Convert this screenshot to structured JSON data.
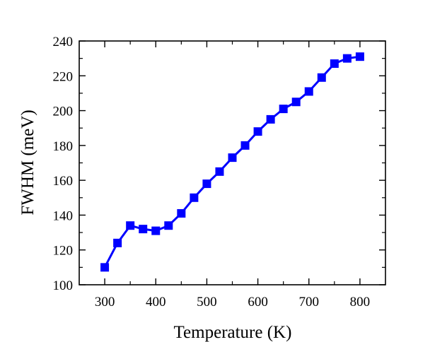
{
  "chart_data": {
    "type": "line",
    "title": "",
    "xlabel": "Temperature (K)",
    "ylabel": "FWHM (meV)",
    "xlim": [
      250,
      850
    ],
    "ylim": [
      100,
      240
    ],
    "xticks": [
      300,
      400,
      500,
      600,
      700,
      800
    ],
    "yticks": [
      100,
      120,
      140,
      160,
      180,
      200,
      220,
      240
    ],
    "grid": false,
    "legend": "none",
    "series": [
      {
        "marker": "square",
        "color": "#0000ff",
        "x": [
          300,
          325,
          350,
          375,
          400,
          425,
          450,
          475,
          500,
          525,
          550,
          575,
          600,
          625,
          650,
          675,
          700,
          725,
          750,
          775,
          800
        ],
        "y": [
          110,
          124,
          134,
          132,
          131,
          134,
          141,
          150,
          158,
          165,
          173,
          180,
          188,
          195,
          201,
          205,
          211,
          219,
          227,
          230,
          231
        ]
      }
    ]
  }
}
